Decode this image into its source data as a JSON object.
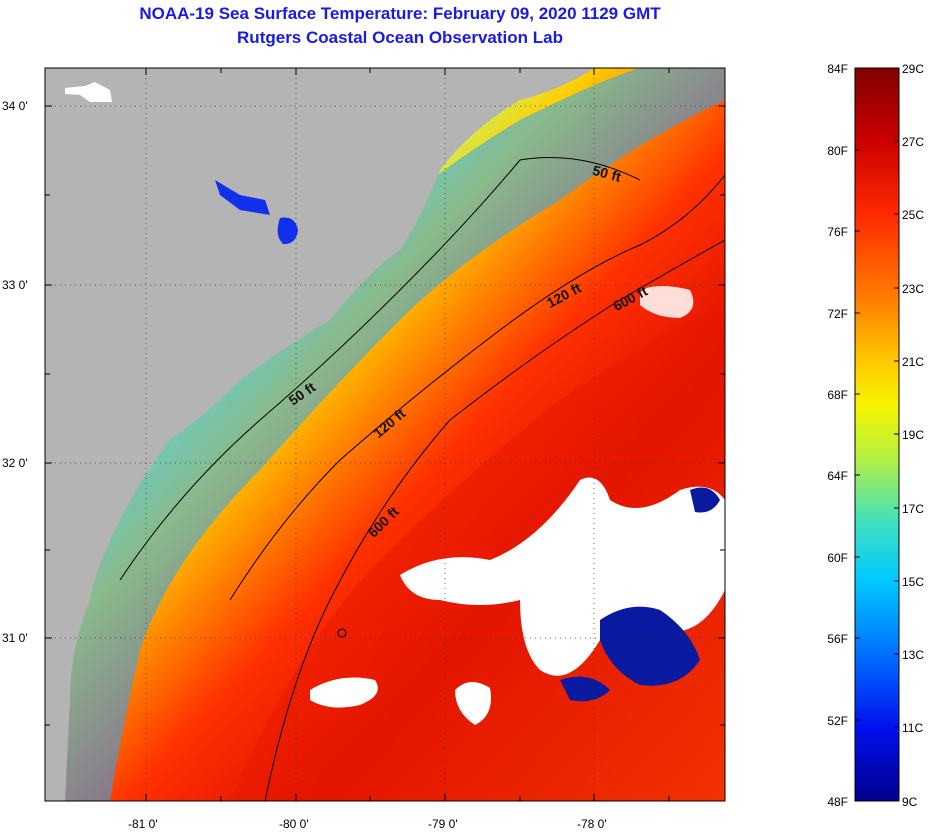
{
  "title": {
    "line1": "NOAA-19 Sea Surface Temperature:  February 09, 2020 1129 GMT",
    "line2": "Rutgers Coastal Ocean Observation Lab"
  },
  "map": {
    "lat_ticks": [
      "34 0'",
      "33 0'",
      "32 0'",
      "31 0'"
    ],
    "lon_ticks": [
      "-81 0'",
      "-80 0'",
      "-79 0'",
      "-78 0'"
    ],
    "contours": [
      "50 ft",
      "120 ft",
      "600 ft"
    ],
    "colors": {
      "land": "#b4b4b4",
      "cloud": "#ffffff",
      "frame": "#000000"
    }
  },
  "colorbar": {
    "fahrenheit": [
      "84F",
      "80F",
      "76F",
      "72F",
      "68F",
      "64F",
      "60F",
      "56F",
      "52F",
      "48F"
    ],
    "celsius": [
      "29C",
      "27C",
      "25C",
      "23C",
      "21C",
      "19C",
      "17C",
      "15C",
      "13C",
      "11C",
      "9C"
    ],
    "stops": [
      "#800000",
      "#cc0000",
      "#ff2a00",
      "#ff7a00",
      "#ffc800",
      "#f5f500",
      "#b8f040",
      "#40e0c0",
      "#00c8ff",
      "#0070ff",
      "#0010ee",
      "#00008c"
    ]
  }
}
